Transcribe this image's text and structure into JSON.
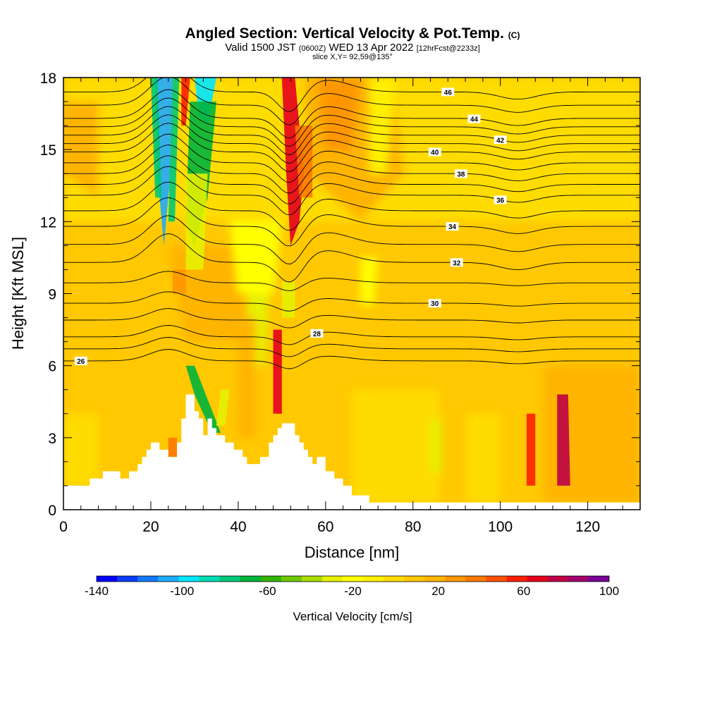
{
  "title": {
    "main": "Angled Section: Vertical Velocity & Pot.Temp.",
    "unit_tag": "(C)",
    "valid_prefix": "Valid 1500 JST",
    "utc": "(0600Z)",
    "valid_date": "WED 13 Apr 2022",
    "forecast": "[12hrFcst@2233z]",
    "slice": "slice X,Y= 92,59@135°"
  },
  "chart_data": {
    "type": "heatmap",
    "xlabel": "Distance [nm]",
    "ylabel": "Height [Kft MSL]",
    "xlim": [
      0,
      132
    ],
    "ylim": [
      0,
      18
    ],
    "x_ticks": [
      0,
      20,
      40,
      60,
      80,
      100,
      120
    ],
    "y_ticks": [
      0,
      3,
      6,
      9,
      12,
      15,
      18
    ],
    "colorbar": {
      "title": "Vertical Velocity [cm/s]",
      "min": -140,
      "max": 100,
      "step": 10,
      "tick_labels": [
        "-140",
        "-100",
        "-60",
        "-20",
        "20",
        "60",
        "100"
      ],
      "colors": [
        "#0000ff",
        "#0a3cff",
        "#1478ff",
        "#1eaaff",
        "#00e6ff",
        "#00dcb4",
        "#00c878",
        "#00b43c",
        "#32b400",
        "#6ec800",
        "#aadc00",
        "#e6f000",
        "#ffff00",
        "#fff000",
        "#ffdc00",
        "#ffc800",
        "#ffb400",
        "#ff9600",
        "#ff7800",
        "#ff5000",
        "#ff1e00",
        "#e6001e",
        "#be0046",
        "#a0006e",
        "#780096"
      ]
    },
    "terrain": [
      [
        0,
        1
      ],
      [
        3,
        1
      ],
      [
        6,
        1
      ],
      [
        6,
        1.3
      ],
      [
        9,
        1.3
      ],
      [
        9,
        1.6
      ],
      [
        13,
        1.6
      ],
      [
        13,
        1.3
      ],
      [
        15,
        1.3
      ],
      [
        15,
        1.6
      ],
      [
        17,
        1.6
      ],
      [
        17,
        1.9
      ],
      [
        18,
        1.9
      ],
      [
        18,
        2.2
      ],
      [
        19,
        2.2
      ],
      [
        19,
        2.5
      ],
      [
        20,
        2.5
      ],
      [
        20,
        2.8
      ],
      [
        22,
        2.8
      ],
      [
        22,
        2.5
      ],
      [
        24,
        2.5
      ],
      [
        24,
        2.2
      ],
      [
        26,
        2.2
      ],
      [
        26,
        2.8
      ],
      [
        27,
        2.8
      ],
      [
        27,
        3.8
      ],
      [
        28,
        3.8
      ],
      [
        28,
        4.8
      ],
      [
        30,
        4.8
      ],
      [
        30,
        4.1
      ],
      [
        31,
        4.1
      ],
      [
        31,
        3.8
      ],
      [
        32,
        3.8
      ],
      [
        32,
        3.1
      ],
      [
        33,
        3.1
      ],
      [
        33,
        3.8
      ],
      [
        34,
        3.8
      ],
      [
        34,
        3.4
      ],
      [
        35,
        3.4
      ],
      [
        35,
        3.1
      ],
      [
        37,
        3.1
      ],
      [
        37,
        2.8
      ],
      [
        39,
        2.8
      ],
      [
        39,
        2.5
      ],
      [
        41,
        2.5
      ],
      [
        41,
        2.2
      ],
      [
        42,
        2.2
      ],
      [
        42,
        1.9
      ],
      [
        45,
        1.9
      ],
      [
        45,
        2.2
      ],
      [
        47,
        2.2
      ],
      [
        47,
        2.8
      ],
      [
        48,
        2.8
      ],
      [
        48,
        3.1
      ],
      [
        49,
        3.1
      ],
      [
        49,
        3.4
      ],
      [
        50,
        3.4
      ],
      [
        50,
        3.6
      ],
      [
        53,
        3.6
      ],
      [
        53,
        3.1
      ],
      [
        54,
        3.1
      ],
      [
        54,
        2.8
      ],
      [
        55,
        2.8
      ],
      [
        55,
        2.5
      ],
      [
        56,
        2.5
      ],
      [
        56,
        2.2
      ],
      [
        57,
        2.2
      ],
      [
        57,
        1.9
      ],
      [
        58,
        1.9
      ],
      [
        58,
        2.2
      ],
      [
        60,
        2.2
      ],
      [
        60,
        1.6
      ],
      [
        62,
        1.6
      ],
      [
        62,
        1.3
      ],
      [
        64,
        1.3
      ],
      [
        64,
        1.0
      ],
      [
        66,
        1.0
      ],
      [
        66,
        0.6
      ],
      [
        70,
        0.6
      ],
      [
        70,
        0.3
      ],
      [
        132,
        0.3
      ]
    ],
    "theta_contours": [
      {
        "value": 26,
        "base_y": 6.2,
        "label_x": 4
      },
      {
        "value": 28,
        "base_y": 7.2,
        "label_x": 58
      },
      {
        "value": 30,
        "base_y": 8.6,
        "label_x": 85
      },
      {
        "value": 32,
        "base_y": 10.3,
        "label_x": 90
      },
      {
        "value": 34,
        "base_y": 11.8,
        "label_x": 89
      },
      {
        "value": 36,
        "base_y": 13.1,
        "label_x": 100
      },
      {
        "value": 38,
        "base_y": 14.0,
        "label_x": 91
      },
      {
        "value": 40,
        "base_y": 14.9,
        "label_x": 85
      },
      {
        "value": 42,
        "base_y": 15.6,
        "label_x": 100
      },
      {
        "value": 44,
        "base_y": 16.3,
        "label_x": 94
      },
      {
        "value": 46,
        "base_y": 17.4,
        "label_x": 88
      }
    ]
  }
}
